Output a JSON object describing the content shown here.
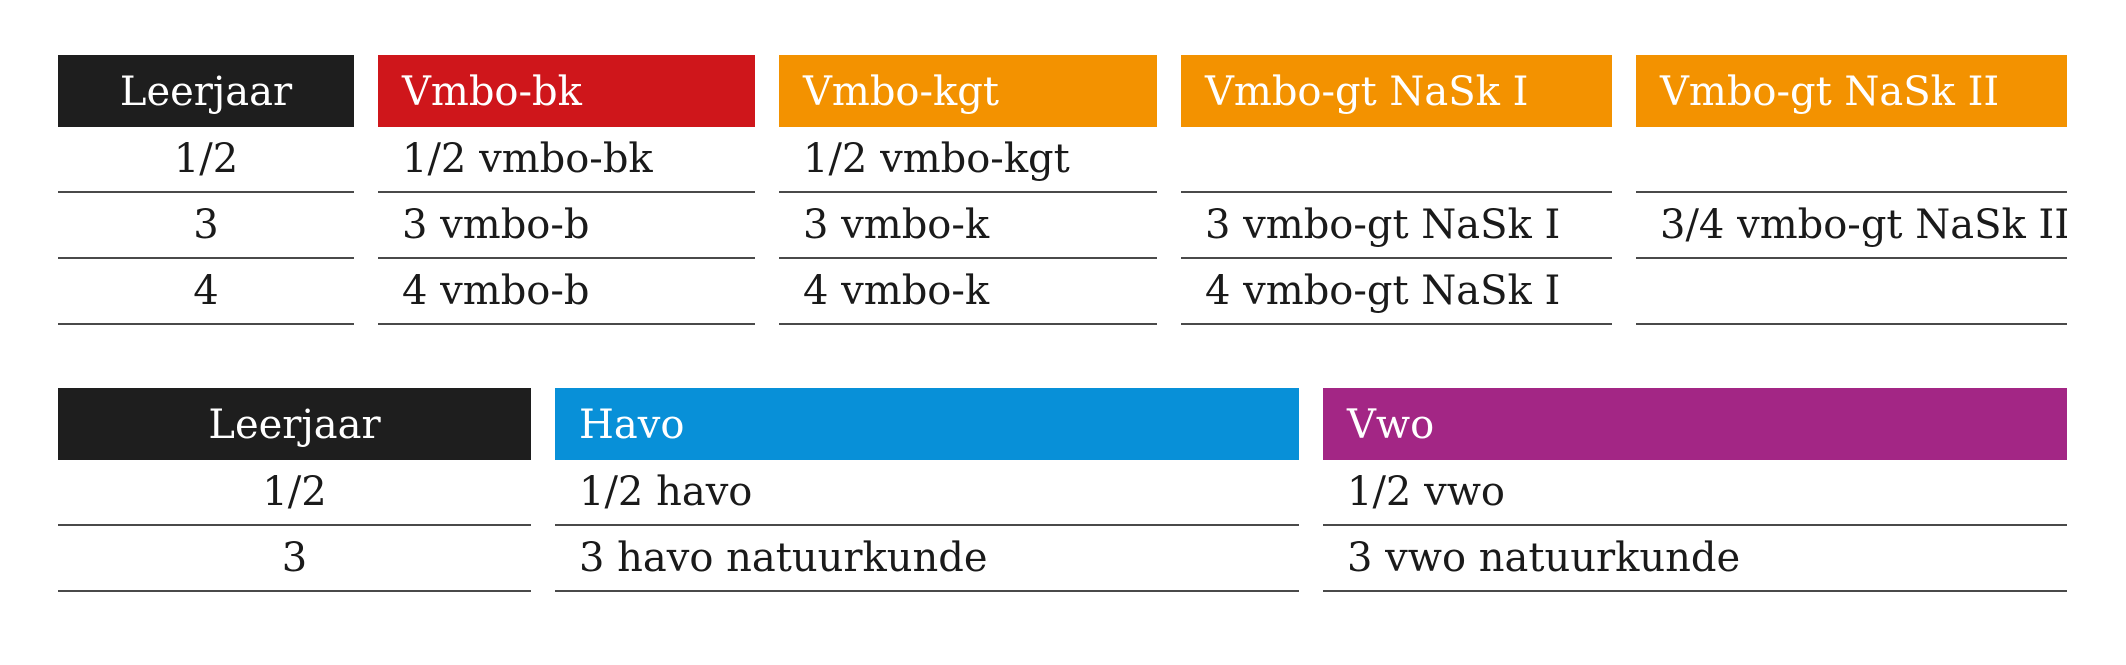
{
  "colors": {
    "leerjaar": "#1e1e1e",
    "vmbo_bk": "#cf161b",
    "orange": "#f39200",
    "havo": "#0890d8",
    "vwo": "#a32685"
  },
  "table1": {
    "columns": [
      {
        "header": "Leerjaar",
        "color": "#1e1e1e",
        "rows": [
          "1/2",
          "3",
          "4"
        ]
      },
      {
        "header": "Vmbo-bk",
        "color": "#cf161b",
        "rows": [
          "1/2 vmbo-bk",
          "3 vmbo-b",
          "4 vmbo-b"
        ]
      },
      {
        "header": "Vmbo-kgt",
        "color": "#f39200",
        "rows": [
          "1/2 vmbo-kgt",
          "3 vmbo-k",
          "4 vmbo-k"
        ]
      },
      {
        "header": "Vmbo-gt NaSk I",
        "color": "#f39200",
        "rows": [
          "",
          "3 vmbo-gt NaSk I",
          "4 vmbo-gt NaSk I"
        ]
      },
      {
        "header": "Vmbo-gt NaSk II",
        "color": "#f39200",
        "rows": [
          "",
          "3/4 vmbo-gt NaSk II",
          ""
        ]
      }
    ]
  },
  "table2": {
    "columns": [
      {
        "header": "Leerjaar",
        "color": "#1e1e1e",
        "rows": [
          "1/2",
          "3"
        ]
      },
      {
        "header": "Havo",
        "color": "#0890d8",
        "rows": [
          "1/2 havo",
          "3 havo natuurkunde"
        ]
      },
      {
        "header": "Vwo",
        "color": "#a32685",
        "rows": [
          "1/2 vwo",
          "3 vwo natuurkunde"
        ]
      }
    ]
  }
}
